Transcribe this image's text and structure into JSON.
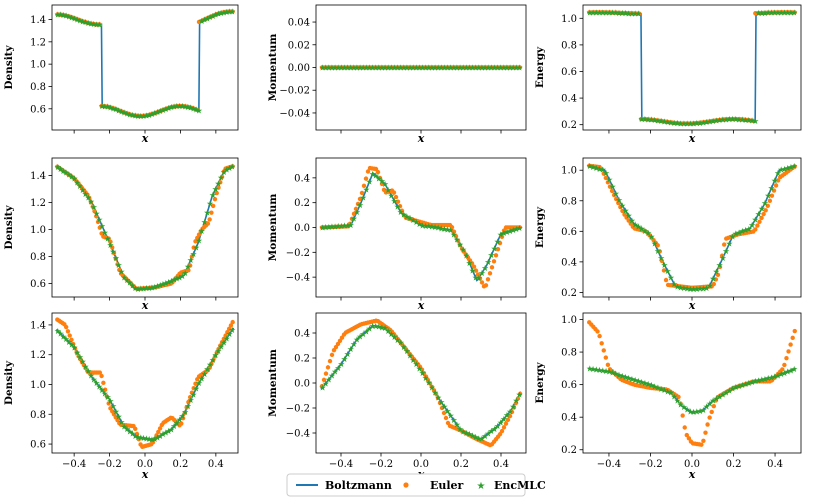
{
  "colors": {
    "boltzmann": "#1f77b4",
    "euler": "#ff7f0e",
    "encmlc": "#2ca02c"
  },
  "legend": {
    "boltzmann": "Boltzmann",
    "euler": "Euler",
    "encmlc": "EncMLC"
  },
  "chart_data": [
    {
      "type": "line",
      "row": 0,
      "col": 0,
      "ylabel": "Density",
      "xlabel": "x",
      "xlim": [
        -0.525,
        0.525
      ],
      "ylim": [
        0.41,
        1.53
      ],
      "yticks": [
        0.6,
        0.8,
        1.0,
        1.2,
        1.4
      ],
      "ytick_labels": [
        "0.6",
        "0.8",
        "1.0",
        "1.2",
        "1.4"
      ],
      "profile": "density_initial",
      "euler_profile": "same"
    },
    {
      "type": "line",
      "row": 0,
      "col": 1,
      "ylabel": "Momentum",
      "xlabel": "x",
      "xlim": [
        -0.525,
        0.525
      ],
      "ylim": [
        -0.055,
        0.055
      ],
      "yticks": [
        -0.04,
        -0.02,
        0.0,
        0.02,
        0.04
      ],
      "ytick_labels": [
        "−0.04",
        "−0.02",
        "0.00",
        "0.02",
        "0.04"
      ],
      "profile": "zero",
      "euler_profile": "same"
    },
    {
      "type": "line",
      "row": 0,
      "col": 2,
      "ylabel": "Energy",
      "xlabel": "x",
      "xlim": [
        -0.525,
        0.525
      ],
      "ylim": [
        0.16,
        1.1
      ],
      "yticks": [
        0.2,
        0.4,
        0.6,
        0.8,
        1.0
      ],
      "ytick_labels": [
        "0.2",
        "0.4",
        "0.6",
        "0.8",
        "1.0"
      ],
      "profile": "energy_initial",
      "euler_profile": "same"
    },
    {
      "type": "line",
      "row": 1,
      "col": 0,
      "ylabel": "Density",
      "xlabel": "x",
      "xlim": [
        -0.525,
        0.525
      ],
      "ylim": [
        0.5,
        1.53
      ],
      "yticks": [
        0.6,
        0.8,
        1.0,
        1.2,
        1.4
      ],
      "ytick_labels": [
        "0.6",
        "0.8",
        "1.0",
        "1.2",
        "1.4"
      ],
      "profile": "density_mid",
      "euler_profile": "density_mid_euler"
    },
    {
      "type": "line",
      "row": 1,
      "col": 1,
      "ylabel": "Momentum",
      "xlabel": "x",
      "xlim": [
        -0.525,
        0.525
      ],
      "ylim": [
        -0.56,
        0.56
      ],
      "yticks": [
        -0.4,
        -0.2,
        0.0,
        0.2,
        0.4
      ],
      "ytick_labels": [
        "−0.4",
        "−0.2",
        "0.0",
        "0.2",
        "0.4"
      ],
      "profile": "momentum_mid",
      "euler_profile": "momentum_mid_euler"
    },
    {
      "type": "line",
      "row": 1,
      "col": 2,
      "ylabel": "Energy",
      "xlabel": "x",
      "xlim": [
        -0.525,
        0.525
      ],
      "ylim": [
        0.17,
        1.08
      ],
      "yticks": [
        0.2,
        0.4,
        0.6,
        0.8,
        1.0
      ],
      "ytick_labels": [
        "0.2",
        "0.4",
        "0.6",
        "0.8",
        "1.0"
      ],
      "profile": "energy_mid",
      "euler_profile": "energy_mid_euler"
    },
    {
      "type": "line",
      "row": 2,
      "col": 0,
      "ylabel": "Density",
      "xlabel": "x",
      "xlim": [
        -0.525,
        0.525
      ],
      "ylim": [
        0.54,
        1.48
      ],
      "yticks": [
        0.6,
        0.8,
        1.0,
        1.2,
        1.4
      ],
      "ytick_labels": [
        "0.6",
        "0.8",
        "1.0",
        "1.2",
        "1.4"
      ],
      "xticks": [
        -0.4,
        -0.2,
        0.0,
        0.2,
        0.4
      ],
      "xtick_labels": [
        "−0.4",
        "−0.2",
        "0.0",
        "0.2",
        "0.4"
      ],
      "profile": "density_late",
      "euler_profile": "density_late_euler"
    },
    {
      "type": "line",
      "row": 2,
      "col": 1,
      "ylabel": "Momentum",
      "xlabel": "x",
      "xlim": [
        -0.525,
        0.525
      ],
      "ylim": [
        -0.56,
        0.56
      ],
      "yticks": [
        -0.4,
        -0.2,
        0.0,
        0.2,
        0.4
      ],
      "ytick_labels": [
        "−0.4",
        "−0.2",
        "0.0",
        "0.2",
        "0.4"
      ],
      "xticks": [
        -0.4,
        -0.2,
        0.0,
        0.2,
        0.4
      ],
      "xtick_labels": [
        "−0.4",
        "−0.2",
        "0.0",
        "0.2",
        "0.4"
      ],
      "profile": "momentum_late",
      "euler_profile": "momentum_late_euler"
    },
    {
      "type": "line",
      "row": 2,
      "col": 2,
      "ylabel": "Energy",
      "xlabel": "x",
      "xlim": [
        -0.525,
        0.525
      ],
      "ylim": [
        0.18,
        1.04
      ],
      "yticks": [
        0.2,
        0.4,
        0.6,
        0.8,
        1.0
      ],
      "ytick_labels": [
        "0.2",
        "0.4",
        "0.6",
        "0.8",
        "1.0"
      ],
      "xticks": [
        -0.4,
        -0.2,
        0.0,
        0.2,
        0.4
      ],
      "xtick_labels": [
        "−0.4",
        "−0.2",
        "0.0",
        "0.2",
        "0.4"
      ],
      "profile": "energy_late",
      "euler_profile": "energy_late_euler"
    }
  ]
}
